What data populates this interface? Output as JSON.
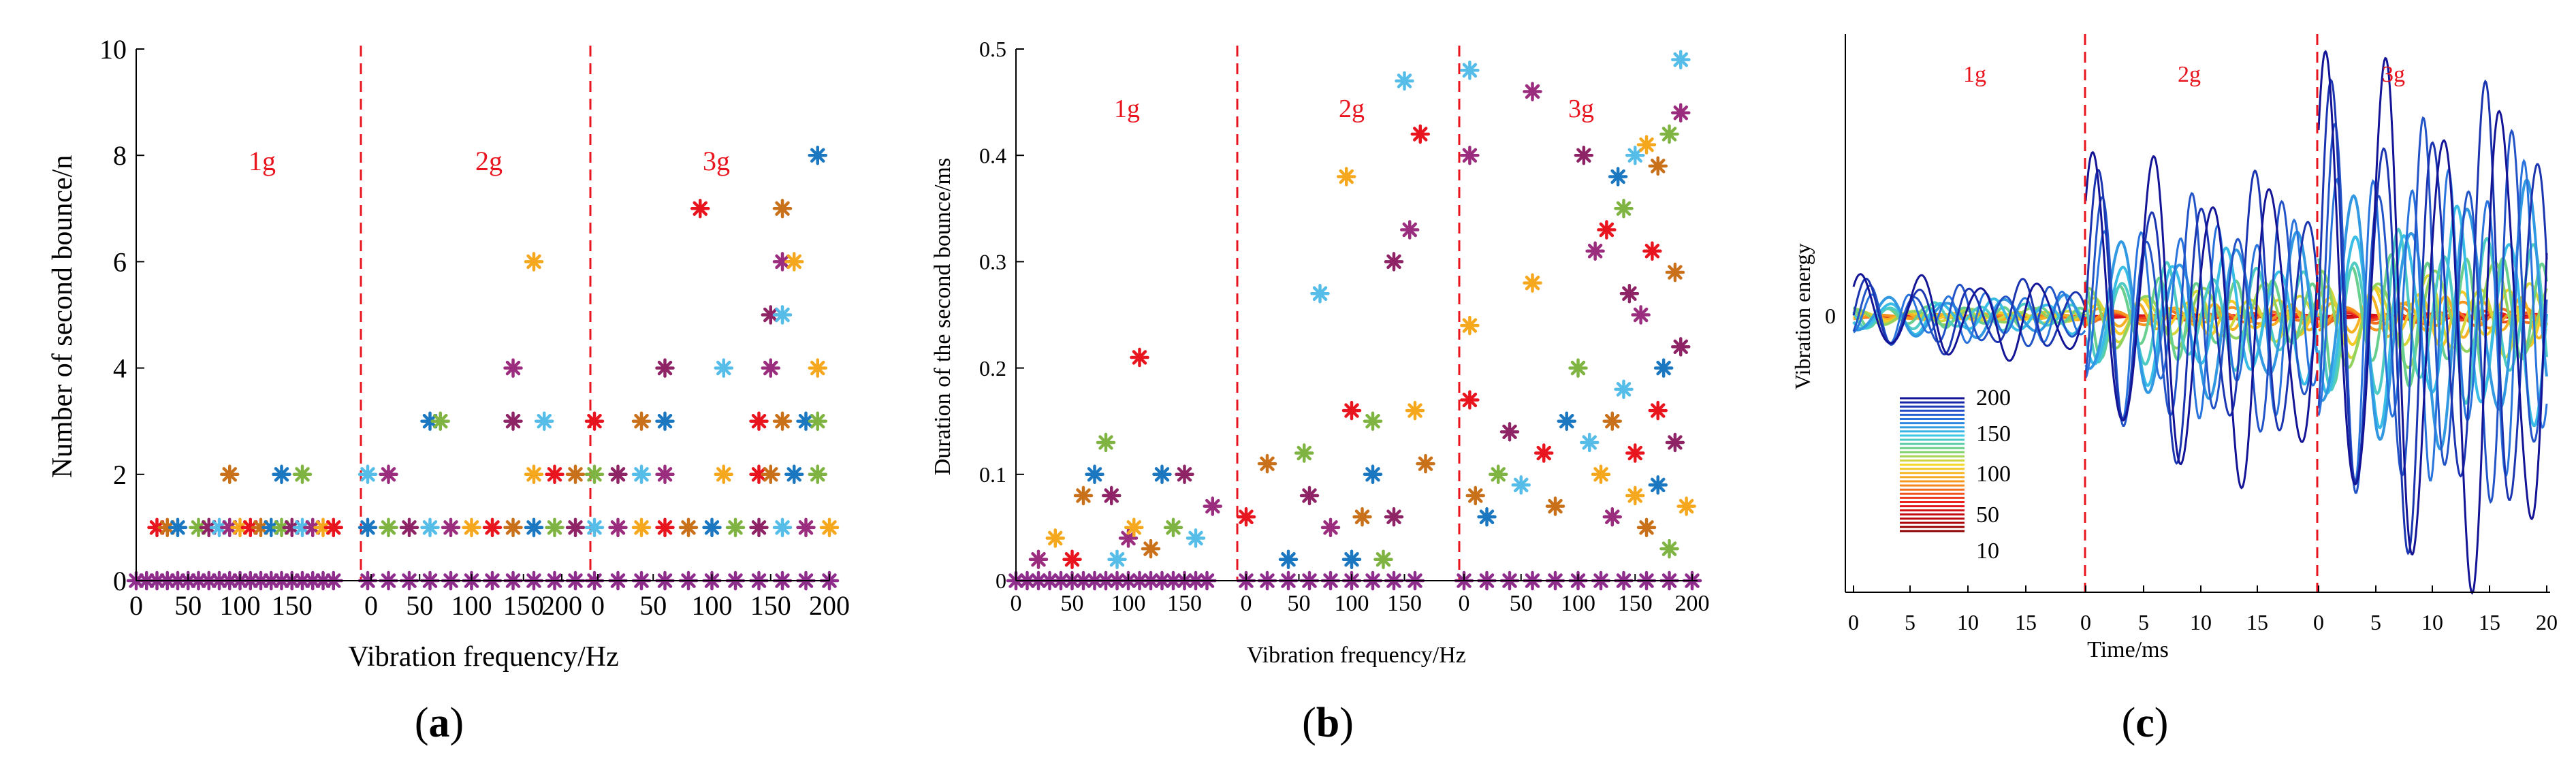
{
  "colors": {
    "axis": "#000000",
    "divider": "#e8141e",
    "region_label": "#e8141e",
    "scatter_palette": [
      "#8e2466",
      "#f5a81d",
      "#1a77c0",
      "#56bde9",
      "#e8141e",
      "#7fb442",
      "#9b2d7e",
      "#c9711a"
    ]
  },
  "chart_data": [
    {
      "id": "a",
      "type": "scatter",
      "panel_label": "(a)",
      "panel_letter": "a",
      "xlabel": "Vibration frequency/Hz",
      "ylabel": "Number of second bounce/n",
      "ylim": [
        0,
        10
      ],
      "yticks": [
        "0",
        "2",
        "4",
        "6",
        "8",
        "10"
      ],
      "xticks": [
        "0",
        "50",
        "100",
        "150",
        "0",
        "50",
        "100",
        "150",
        "200",
        "0",
        "50",
        "100",
        "150",
        "200"
      ],
      "regions": [
        "1g",
        "2g",
        "3g"
      ],
      "marker": "asterisk",
      "series": [
        {
          "name": "1g",
          "points": [
            [
              0,
              0
            ],
            [
              10,
              0
            ],
            [
              20,
              0
            ],
            [
              30,
              0
            ],
            [
              40,
              0
            ],
            [
              50,
              0
            ],
            [
              60,
              0
            ],
            [
              70,
              0
            ],
            [
              80,
              0
            ],
            [
              90,
              0
            ],
            [
              100,
              0
            ],
            [
              110,
              0
            ],
            [
              120,
              0
            ],
            [
              130,
              0
            ],
            [
              140,
              0
            ],
            [
              150,
              0
            ],
            [
              160,
              0
            ],
            [
              170,
              0
            ],
            [
              180,
              0
            ],
            [
              190,
              0
            ],
            [
              20,
              1
            ],
            [
              30,
              1
            ],
            [
              40,
              1
            ],
            [
              60,
              1
            ],
            [
              70,
              1
            ],
            [
              80,
              1
            ],
            [
              90,
              1
            ],
            [
              100,
              1
            ],
            [
              110,
              1
            ],
            [
              120,
              1
            ],
            [
              130,
              1
            ],
            [
              140,
              1
            ],
            [
              150,
              1
            ],
            [
              160,
              1
            ],
            [
              170,
              1
            ],
            [
              180,
              1
            ],
            [
              190,
              1
            ],
            [
              90,
              2
            ],
            [
              140,
              2
            ],
            [
              160,
              2
            ]
          ]
        },
        {
          "name": "2g",
          "points": [
            [
              0,
              0
            ],
            [
              20,
              0
            ],
            [
              40,
              0
            ],
            [
              60,
              0
            ],
            [
              80,
              0
            ],
            [
              100,
              0
            ],
            [
              120,
              0
            ],
            [
              140,
              0
            ],
            [
              160,
              0
            ],
            [
              180,
              0
            ],
            [
              200,
              0
            ],
            [
              0,
              1
            ],
            [
              20,
              1
            ],
            [
              40,
              1
            ],
            [
              60,
              1
            ],
            [
              80,
              1
            ],
            [
              100,
              1
            ],
            [
              120,
              1
            ],
            [
              140,
              1
            ],
            [
              160,
              1
            ],
            [
              180,
              1
            ],
            [
              200,
              1
            ],
            [
              0,
              2
            ],
            [
              20,
              2
            ],
            [
              160,
              2
            ],
            [
              180,
              2
            ],
            [
              200,
              2
            ],
            [
              60,
              3
            ],
            [
              70,
              3
            ],
            [
              140,
              3
            ],
            [
              170,
              3
            ],
            [
              140,
              4
            ],
            [
              160,
              6
            ]
          ]
        },
        {
          "name": "3g",
          "points": [
            [
              0,
              0
            ],
            [
              20,
              0
            ],
            [
              40,
              0
            ],
            [
              60,
              0
            ],
            [
              80,
              0
            ],
            [
              100,
              0
            ],
            [
              120,
              0
            ],
            [
              140,
              0
            ],
            [
              160,
              0
            ],
            [
              180,
              0
            ],
            [
              200,
              0
            ],
            [
              0,
              1
            ],
            [
              20,
              1
            ],
            [
              40,
              1
            ],
            [
              60,
              1
            ],
            [
              80,
              1
            ],
            [
              100,
              1
            ],
            [
              120,
              1
            ],
            [
              140,
              1
            ],
            [
              160,
              1
            ],
            [
              180,
              1
            ],
            [
              200,
              1
            ],
            [
              0,
              3
            ],
            [
              40,
              3
            ],
            [
              60,
              3
            ],
            [
              0,
              2
            ],
            [
              20,
              2
            ],
            [
              40,
              2
            ],
            [
              60,
              2
            ],
            [
              110,
              2
            ],
            [
              140,
              2
            ],
            [
              150,
              2
            ],
            [
              170,
              2
            ],
            [
              190,
              2
            ],
            [
              60,
              4
            ],
            [
              110,
              4
            ],
            [
              150,
              4
            ],
            [
              190,
              4
            ],
            [
              140,
              3
            ],
            [
              160,
              3
            ],
            [
              180,
              3
            ],
            [
              190,
              3
            ],
            [
              150,
              5
            ],
            [
              160,
              5
            ],
            [
              160,
              6
            ],
            [
              170,
              6
            ],
            [
              90,
              7
            ],
            [
              160,
              7
            ],
            [
              190,
              8
            ]
          ]
        }
      ]
    },
    {
      "id": "b",
      "type": "scatter",
      "panel_label": "(b)",
      "panel_letter": "b",
      "xlabel": "Vibration frequency/Hz",
      "ylabel": "Duration of the second bounce/ms",
      "ylim": [
        0,
        0.5
      ],
      "yticks": [
        "0",
        "0.1",
        "0.2",
        "0.3",
        "0.4",
        "0.5"
      ],
      "xticks": [
        "0",
        "50",
        "100",
        "150",
        "0",
        "50",
        "100",
        "150",
        "0",
        "50",
        "100",
        "150",
        "200"
      ],
      "regions": [
        "1g",
        "2g",
        "3g"
      ],
      "marker": "asterisk",
      "series": [
        {
          "name": "1g",
          "points": [
            [
              0,
              0
            ],
            [
              10,
              0
            ],
            [
              20,
              0
            ],
            [
              30,
              0
            ],
            [
              40,
              0
            ],
            [
              50,
              0
            ],
            [
              60,
              0
            ],
            [
              70,
              0
            ],
            [
              80,
              0
            ],
            [
              90,
              0
            ],
            [
              100,
              0
            ],
            [
              110,
              0
            ],
            [
              120,
              0
            ],
            [
              130,
              0
            ],
            [
              140,
              0
            ],
            [
              150,
              0
            ],
            [
              160,
              0
            ],
            [
              170,
              0
            ],
            [
              20,
              0.02
            ],
            [
              35,
              0.04
            ],
            [
              50,
              0.02
            ],
            [
              60,
              0.08
            ],
            [
              70,
              0.1
            ],
            [
              80,
              0.13
            ],
            [
              85,
              0.08
            ],
            [
              90,
              0.02
            ],
            [
              100,
              0.04
            ],
            [
              105,
              0.05
            ],
            [
              110,
              0.21
            ],
            [
              120,
              0.03
            ],
            [
              130,
              0.1
            ],
            [
              140,
              0.05
            ],
            [
              150,
              0.1
            ],
            [
              160,
              0.04
            ],
            [
              175,
              0.07
            ]
          ]
        },
        {
          "name": "2g",
          "points": [
            [
              0,
              0
            ],
            [
              20,
              0
            ],
            [
              40,
              0
            ],
            [
              60,
              0
            ],
            [
              80,
              0
            ],
            [
              100,
              0
            ],
            [
              120,
              0
            ],
            [
              140,
              0
            ],
            [
              160,
              0
            ],
            [
              0,
              0.06
            ],
            [
              20,
              0.11
            ],
            [
              40,
              0.02
            ],
            [
              55,
              0.12
            ],
            [
              60,
              0.08
            ],
            [
              70,
              0.27
            ],
            [
              80,
              0.05
            ],
            [
              95,
              0.38
            ],
            [
              100,
              0.16
            ],
            [
              110,
              0.06
            ],
            [
              120,
              0.1
            ],
            [
              130,
              0.02
            ],
            [
              140,
              0.3
            ],
            [
              150,
              0.47
            ],
            [
              155,
              0.33
            ],
            [
              160,
              0.16
            ],
            [
              165,
              0.42
            ],
            [
              170,
              0.11
            ],
            [
              100,
              0.02
            ],
            [
              120,
              0.15
            ],
            [
              140,
              0.06
            ]
          ]
        },
        {
          "name": "3g",
          "points": [
            [
              0,
              0
            ],
            [
              20,
              0
            ],
            [
              40,
              0
            ],
            [
              60,
              0
            ],
            [
              80,
              0
            ],
            [
              100,
              0
            ],
            [
              120,
              0
            ],
            [
              140,
              0
            ],
            [
              160,
              0
            ],
            [
              180,
              0
            ],
            [
              200,
              0
            ],
            [
              5,
              0.48
            ],
            [
              5,
              0.4
            ],
            [
              5,
              0.24
            ],
            [
              5,
              0.17
            ],
            [
              10,
              0.08
            ],
            [
              20,
              0.06
            ],
            [
              30,
              0.1
            ],
            [
              40,
              0.14
            ],
            [
              50,
              0.09
            ],
            [
              60,
              0.46
            ],
            [
              60,
              0.28
            ],
            [
              70,
              0.12
            ],
            [
              80,
              0.07
            ],
            [
              90,
              0.15
            ],
            [
              100,
              0.2
            ],
            [
              105,
              0.4
            ],
            [
              110,
              0.13
            ],
            [
              115,
              0.31
            ],
            [
              120,
              0.1
            ],
            [
              125,
              0.33
            ],
            [
              130,
              0.15
            ],
            [
              135,
              0.38
            ],
            [
              140,
              0.35
            ],
            [
              145,
              0.27
            ],
            [
              150,
              0.4
            ],
            [
              155,
              0.25
            ],
            [
              160,
              0.41
            ],
            [
              165,
              0.31
            ],
            [
              170,
              0.39
            ],
            [
              175,
              0.2
            ],
            [
              180,
              0.42
            ],
            [
              185,
              0.13
            ],
            [
              190,
              0.49
            ],
            [
              190,
              0.44
            ],
            [
              195,
              0.07
            ],
            [
              150,
              0.12
            ],
            [
              160,
              0.05
            ],
            [
              170,
              0.09
            ],
            [
              180,
              0.03
            ],
            [
              190,
              0.22
            ],
            [
              140,
              0.18
            ],
            [
              130,
              0.06
            ],
            [
              150,
              0.08
            ],
            [
              170,
              0.16
            ],
            [
              185,
              0.29
            ]
          ]
        }
      ]
    },
    {
      "id": "c",
      "type": "line",
      "panel_label": "(c)",
      "panel_letter": "c",
      "xlabel": "Time/ms",
      "ylabel": "Vibration energy",
      "ytick_zero": "0",
      "xticks": [
        "0",
        "5",
        "10",
        "15",
        "0",
        "5",
        "10",
        "15",
        "0",
        "5",
        "10",
        "15",
        "20"
      ],
      "regions": [
        "1g",
        "2g",
        "3g"
      ],
      "legend": {
        "placement": "bottom-left",
        "entries": [
          "200",
          "150",
          "100",
          "50",
          "10"
        ]
      },
      "frequencies_hz": [
        200,
        190,
        180,
        170,
        160,
        150,
        140,
        130,
        120,
        110,
        100,
        90,
        80,
        70,
        60,
        50,
        40,
        30,
        20,
        10
      ],
      "max_amplitude": {
        "1g": 0.16,
        "2g": 0.62,
        "3g": 1.0
      }
    }
  ]
}
